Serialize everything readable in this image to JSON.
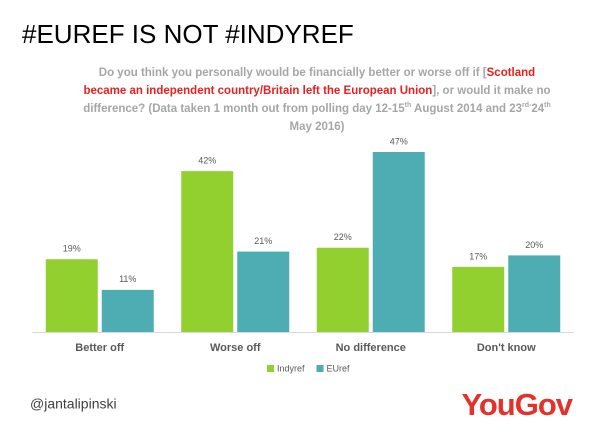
{
  "chart_data": {
    "type": "bar",
    "title": "#EUREF IS NOT #INDYREF",
    "subtitle": [
      "Do you think you personally would be financially better or worse off if [",
      "Scotland became an independent country/Britain left the European Union",
      "], or would it make no difference?  (Data taken 1 month out from polling day 12-15",
      "th",
      " August 2014 and 23",
      "rd-",
      "24",
      "th",
      " May 2016)"
    ],
    "categories": [
      "Better off",
      "Worse off",
      "No difference",
      "Don't know"
    ],
    "series": [
      {
        "name": "Indyref",
        "color": "#92d030",
        "values": [
          19,
          42,
          22,
          17
        ],
        "value_labels": [
          "19%",
          "42%",
          "22%",
          "17%"
        ]
      },
      {
        "name": "EUref",
        "color": "#4eadb2",
        "values": [
          11,
          21,
          47,
          20
        ],
        "value_labels": [
          "11%",
          "21%",
          "47%",
          "20%"
        ]
      }
    ],
    "footer": "@jantalipinski",
    "logo": "YouGov"
  }
}
